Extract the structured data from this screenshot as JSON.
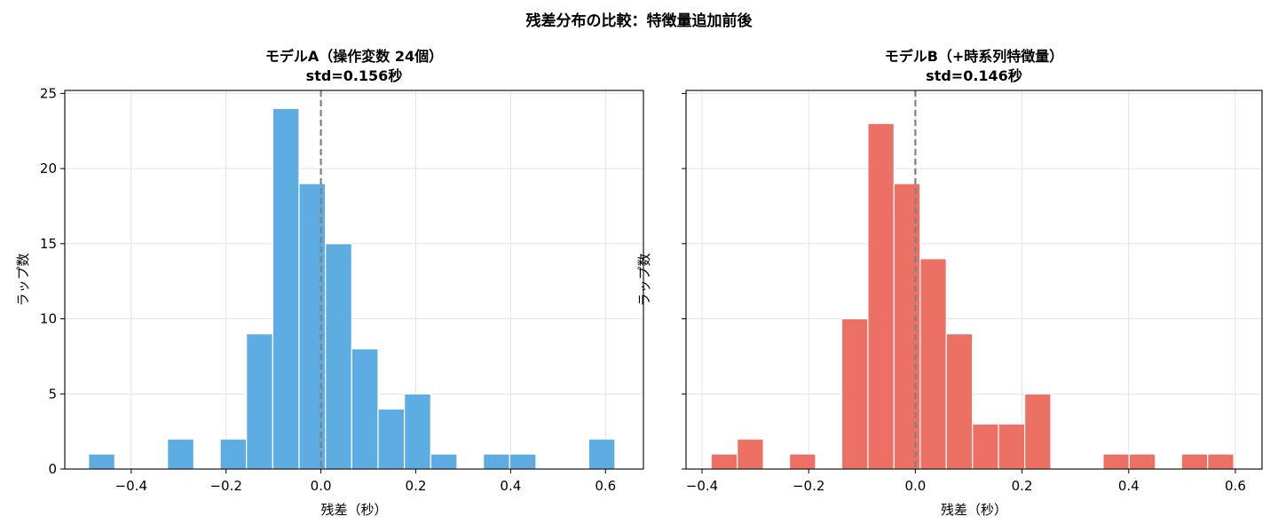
{
  "figure": {
    "suptitle": "残差分布の比較：特徴量追加前後"
  },
  "chart_data": [
    {
      "type": "bar",
      "title": [
        "モデルA（操作変数 24個）",
        "std=0.156秒"
      ],
      "xlabel": "残差（秒）",
      "ylabel": "ラップ数",
      "xlim": [
        -0.54,
        0.68
      ],
      "ylim": [
        0,
        25.2
      ],
      "xticks": [
        -0.4,
        -0.2,
        0.0,
        0.2,
        0.4,
        0.6
      ],
      "xtick_labels": [
        "−0.4",
        "−0.2",
        "0.0",
        "0.2",
        "0.4",
        "0.6"
      ],
      "yticks": [
        0,
        5,
        10,
        15,
        20,
        25
      ],
      "ytick_labels": [
        "0",
        "5",
        "10",
        "15",
        "20",
        "25"
      ],
      "bin_start": -0.49,
      "bin_width": 0.0555,
      "counts": [
        1,
        0,
        0,
        2,
        0,
        2,
        9,
        24,
        19,
        15,
        8,
        4,
        5,
        1,
        0,
        1,
        1,
        0,
        0,
        2
      ],
      "color": "#5DADE2",
      "vline_x": 0.0,
      "grid": true
    },
    {
      "type": "bar",
      "title": [
        "モデルB（+時系列特徴量）",
        "std=0.146秒"
      ],
      "xlabel": "残差（秒）",
      "ylabel": "ラップ数",
      "xlim": [
        -0.43,
        0.65
      ],
      "ylim": [
        0,
        25.2
      ],
      "xticks": [
        -0.4,
        -0.2,
        0.0,
        0.2,
        0.4,
        0.6
      ],
      "xtick_labels": [
        "−0.4",
        "−0.2",
        "0.0",
        "0.2",
        "0.4",
        "0.6"
      ],
      "yticks": [
        0,
        5,
        10,
        15,
        20,
        25
      ],
      "ytick_labels": [
        "",
        "",
        "",
        "",
        "",
        ""
      ],
      "bin_start": -0.383,
      "bin_width": 0.049,
      "counts": [
        1,
        2,
        0,
        1,
        0,
        10,
        23,
        19,
        14,
        9,
        3,
        3,
        5,
        0,
        0,
        1,
        1,
        0,
        1,
        1
      ],
      "color": "#EC7063",
      "vline_x": 0.0,
      "grid": true
    }
  ]
}
